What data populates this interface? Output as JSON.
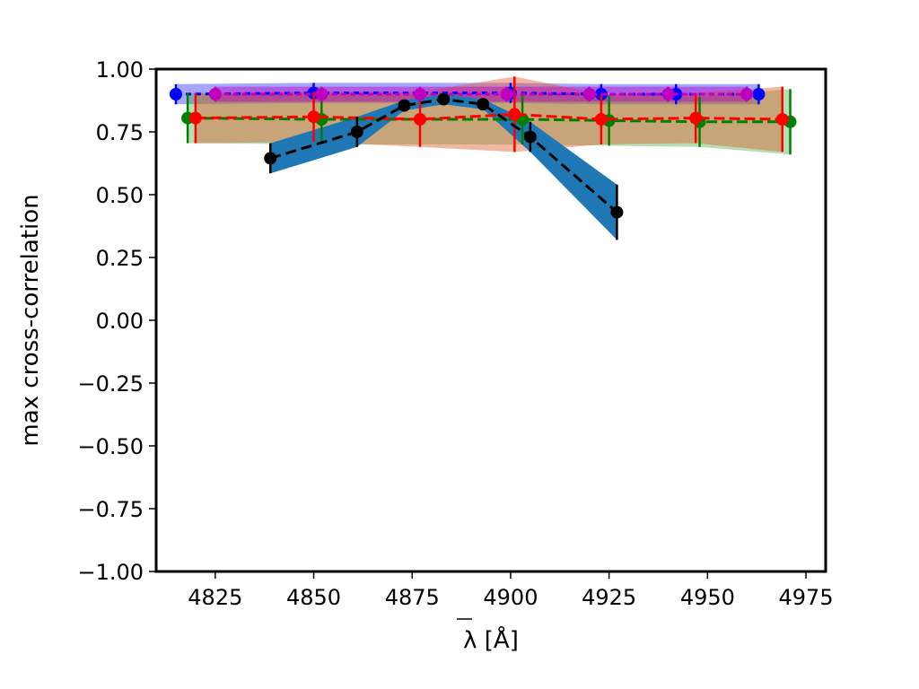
{
  "chart_data": {
    "type": "line",
    "xlabel": "λ [Å]",
    "ylabel": "max cross-correlation",
    "xlim": [
      4810,
      4980
    ],
    "ylim": [
      -1.0,
      1.0
    ],
    "x_ticks": [
      4825,
      4850,
      4875,
      4900,
      4925,
      4950,
      4975
    ],
    "x_tick_labels": [
      "4825",
      "4850",
      "4875",
      "4900",
      "4925",
      "4950",
      "4975"
    ],
    "y_ticks": [
      -1.0,
      -0.75,
      -0.5,
      -0.25,
      0.0,
      0.25,
      0.5,
      0.75,
      1.0
    ],
    "y_tick_labels": [
      "−1.00",
      "−0.75",
      "−0.50",
      "−0.25",
      "0.00",
      "0.25",
      "0.50",
      "0.75",
      "1.00"
    ],
    "grid": false,
    "legend": "none",
    "series": [
      {
        "color": "#0000ff",
        "band_color": "#0000ff",
        "band_opacity": 0.35,
        "dash": "6,5",
        "x": [
          4815,
          4850,
          4900,
          4923,
          4942,
          4963
        ],
        "y": [
          0.9,
          0.905,
          0.905,
          0.9,
          0.9,
          0.9
        ],
        "err": [
          0.04,
          0.04,
          0.04,
          0.04,
          0.04,
          0.04
        ]
      },
      {
        "color": "#008000",
        "band_color": "#2ca02c",
        "band_opacity": 0.35,
        "dash": "12,5",
        "x": [
          4818,
          4852,
          4903,
          4925,
          4948,
          4971
        ],
        "y": [
          0.805,
          0.8,
          0.8,
          0.795,
          0.79,
          0.79
        ],
        "err": [
          0.1,
          0.1,
          0.1,
          0.1,
          0.1,
          0.13
        ]
      },
      {
        "color": "#ff0000",
        "band_color": "#e06030",
        "band_opacity": 0.45,
        "dash": "12,5",
        "x": [
          4820,
          4850,
          4877,
          4901,
          4923,
          4947,
          4969
        ],
        "y": [
          0.805,
          0.81,
          0.8,
          0.82,
          0.8,
          0.805,
          0.8
        ],
        "err": [
          0.1,
          0.1,
          0.11,
          0.15,
          0.1,
          0.1,
          0.13
        ]
      },
      {
        "color": "#bf00bf",
        "band_color": "#bf00bf",
        "band_opacity": 0.45,
        "dash": "6,4",
        "x": [
          4825,
          4852,
          4877,
          4899,
          4920,
          4940,
          4960
        ],
        "y": [
          0.9,
          0.9,
          0.9,
          0.9,
          0.9,
          0.9,
          0.9
        ],
        "err": [
          0.03,
          0.03,
          0.03,
          0.03,
          0.03,
          0.03,
          0.03
        ]
      },
      {
        "color": "#000000",
        "band_color": "#1f77b4",
        "band_opacity": 1.0,
        "dash": "12,6",
        "x": [
          4839,
          4861,
          4873,
          4883,
          4893,
          4905,
          4927
        ],
        "y": [
          0.645,
          0.75,
          0.855,
          0.88,
          0.86,
          0.73,
          0.43
        ],
        "err": [
          0.06,
          0.06,
          0.02,
          0.02,
          0.02,
          0.06,
          0.11
        ]
      }
    ]
  }
}
